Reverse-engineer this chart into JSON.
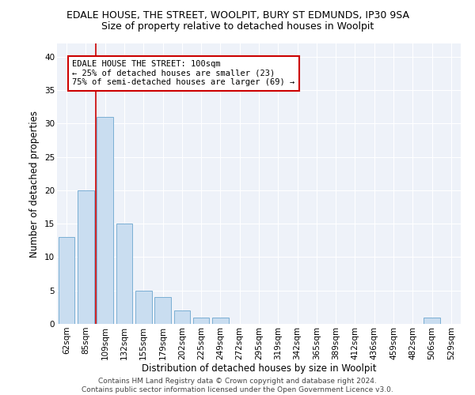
{
  "title": "EDALE HOUSE, THE STREET, WOOLPIT, BURY ST EDMUNDS, IP30 9SA",
  "subtitle": "Size of property relative to detached houses in Woolpit",
  "xlabel": "Distribution of detached houses by size in Woolpit",
  "ylabel": "Number of detached properties",
  "categories": [
    "62sqm",
    "85sqm",
    "109sqm",
    "132sqm",
    "155sqm",
    "179sqm",
    "202sqm",
    "225sqm",
    "249sqm",
    "272sqm",
    "295sqm",
    "319sqm",
    "342sqm",
    "365sqm",
    "389sqm",
    "412sqm",
    "436sqm",
    "459sqm",
    "482sqm",
    "506sqm",
    "529sqm"
  ],
  "values": [
    13,
    20,
    31,
    15,
    5,
    4,
    2,
    1,
    1,
    0,
    0,
    0,
    0,
    0,
    0,
    0,
    0,
    0,
    0,
    1,
    0
  ],
  "bar_color": "#c9ddf0",
  "bar_edge_color": "#7bafd4",
  "annotation_text": "EDALE HOUSE THE STREET: 100sqm\n← 25% of detached houses are smaller (23)\n75% of semi-detached houses are larger (69) →",
  "annotation_box_color": "#ffffff",
  "annotation_box_edge_color": "#cc0000",
  "vline_color": "#cc0000",
  "ylim": [
    0,
    42
  ],
  "yticks": [
    0,
    5,
    10,
    15,
    20,
    25,
    30,
    35,
    40
  ],
  "background_color": "#eef2f9",
  "footer_text": "Contains HM Land Registry data © Crown copyright and database right 2024.\nContains public sector information licensed under the Open Government Licence v3.0.",
  "title_fontsize": 9,
  "subtitle_fontsize": 9,
  "xlabel_fontsize": 8.5,
  "ylabel_fontsize": 8.5,
  "tick_fontsize": 7.5,
  "annotation_fontsize": 7.5,
  "footer_fontsize": 6.5
}
